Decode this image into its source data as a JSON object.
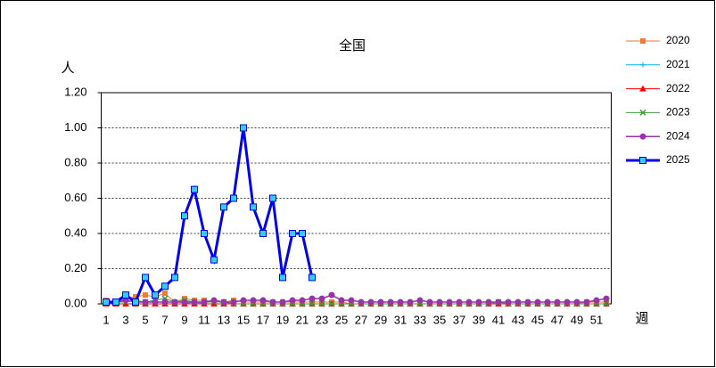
{
  "chart_data": {
    "type": "line",
    "title": "全国",
    "y_label": "人",
    "x_label": "週",
    "categories": [
      "1",
      null,
      "3",
      null,
      "5",
      null,
      "7",
      null,
      "9",
      null,
      "11",
      null,
      "13",
      null,
      "15",
      null,
      "17",
      null,
      "19",
      null,
      "21",
      null,
      "23",
      null,
      "25",
      null,
      "27",
      null,
      "29",
      null,
      "31",
      null,
      "33",
      null,
      "35",
      null,
      "37",
      null,
      "39",
      null,
      "41",
      null,
      "43",
      null,
      "45",
      null,
      "47",
      null,
      "49",
      null,
      "51",
      null
    ],
    "ylim": [
      0,
      1.2
    ],
    "yticks": [
      {
        "value": 0,
        "label": "0.00"
      },
      {
        "value": 0.2,
        "label": "0.20"
      },
      {
        "value": 0.4,
        "label": "0.40"
      },
      {
        "value": 0.6,
        "label": "0.60"
      },
      {
        "value": 0.8,
        "label": "0.80"
      },
      {
        "value": 1.0,
        "label": "1.00"
      },
      {
        "value": 1.2,
        "label": "1.20"
      }
    ],
    "grid": true,
    "series": [
      {
        "name": "2020",
        "color": "#ed7d31",
        "marker": "square",
        "width": 1,
        "values": [
          0.02,
          0.01,
          0.03,
          0.04,
          0.05,
          0.04,
          0.06,
          0.01,
          0.03,
          0.02,
          0.02,
          0.01,
          0.01,
          0.02,
          0.01,
          0.01,
          0.01,
          0.01,
          0.01,
          0.01,
          0.01,
          0.01,
          0.01,
          0.01,
          0.01,
          0,
          0,
          0,
          0,
          0,
          0,
          0,
          0,
          0,
          0,
          0,
          0,
          0,
          0,
          0,
          0,
          0,
          0,
          0,
          0,
          0,
          0,
          0,
          0,
          0.01,
          0.01,
          0.01
        ]
      },
      {
        "name": "2021",
        "color": "#00b0f0",
        "marker": "plus",
        "width": 1,
        "values": [
          0,
          0,
          0,
          0,
          0,
          0,
          0,
          0,
          0,
          0.01,
          0,
          0,
          0,
          0,
          0,
          0,
          0,
          0,
          0,
          0,
          0,
          0,
          0,
          0,
          0,
          0,
          0,
          0,
          0,
          0,
          0,
          0,
          0,
          0,
          0,
          0,
          0,
          0,
          0,
          0,
          0,
          0,
          0,
          0,
          0,
          0,
          0,
          0,
          0,
          0,
          0,
          0
        ]
      },
      {
        "name": "2022",
        "color": "#ff0000",
        "marker": "triangle",
        "width": 1,
        "values": [
          0,
          0,
          0,
          0,
          0,
          0,
          0,
          0,
          0,
          0,
          0,
          0,
          0,
          0,
          0,
          0,
          0,
          0,
          0,
          0,
          0,
          0,
          0,
          0,
          0,
          0,
          0,
          0,
          0,
          0,
          0,
          0,
          0,
          0,
          0,
          0,
          0,
          0,
          0,
          0,
          0,
          0,
          0,
          0,
          0,
          0,
          0,
          0,
          0,
          0,
          0,
          0
        ]
      },
      {
        "name": "2023",
        "color": "#3c9a3c",
        "marker": "cross",
        "width": 1,
        "values": [
          0.01,
          0.01,
          0.01,
          0.02,
          0.01,
          0.02,
          0.03,
          0.01,
          0.02,
          0.01,
          0.01,
          0.01,
          0.01,
          0,
          0,
          0,
          0,
          0,
          0,
          0,
          0,
          0,
          0,
          0,
          0,
          0,
          0,
          0,
          0,
          0,
          0,
          0,
          0,
          0,
          0,
          0,
          0,
          0,
          0,
          0,
          0.01,
          0,
          0,
          0,
          0,
          0,
          0,
          0,
          0,
          0,
          0,
          0
        ]
      },
      {
        "name": "2024",
        "color": "#9933aa",
        "marker": "circle",
        "width": 1.5,
        "values": [
          0.01,
          0.01,
          0.02,
          0.01,
          0.01,
          0.01,
          0.01,
          0.01,
          0.01,
          0.01,
          0.01,
          0.02,
          0.01,
          0.01,
          0.02,
          0.02,
          0.02,
          0.01,
          0.01,
          0.02,
          0.02,
          0.03,
          0.03,
          0.05,
          0.02,
          0.02,
          0.01,
          0.01,
          0.01,
          0.01,
          0.01,
          0.01,
          0.02,
          0.01,
          0.01,
          0.01,
          0.01,
          0.01,
          0.01,
          0.01,
          0.01,
          0.01,
          0.01,
          0.01,
          0.01,
          0.01,
          0.01,
          0.01,
          0.01,
          0.01,
          0.02,
          0.03
        ]
      },
      {
        "name": "2025",
        "color": "#0000ee",
        "marker": "square-big",
        "marker_fill": "#33ccff",
        "width": 3,
        "values": [
          0.01,
          0.01,
          0.05,
          0.01,
          0.15,
          0.05,
          0.1,
          0.15,
          0.5,
          0.65,
          0.4,
          0.25,
          0.55,
          0.6,
          1.0,
          0.55,
          0.4,
          0.6,
          0.15,
          0.4,
          0.4,
          0.15,
          null,
          null,
          null,
          null,
          null,
          null,
          null,
          null,
          null,
          null,
          null,
          null,
          null,
          null,
          null,
          null,
          null,
          null,
          null,
          null,
          null,
          null,
          null,
          null,
          null,
          null,
          null,
          null,
          null,
          null
        ]
      }
    ]
  }
}
